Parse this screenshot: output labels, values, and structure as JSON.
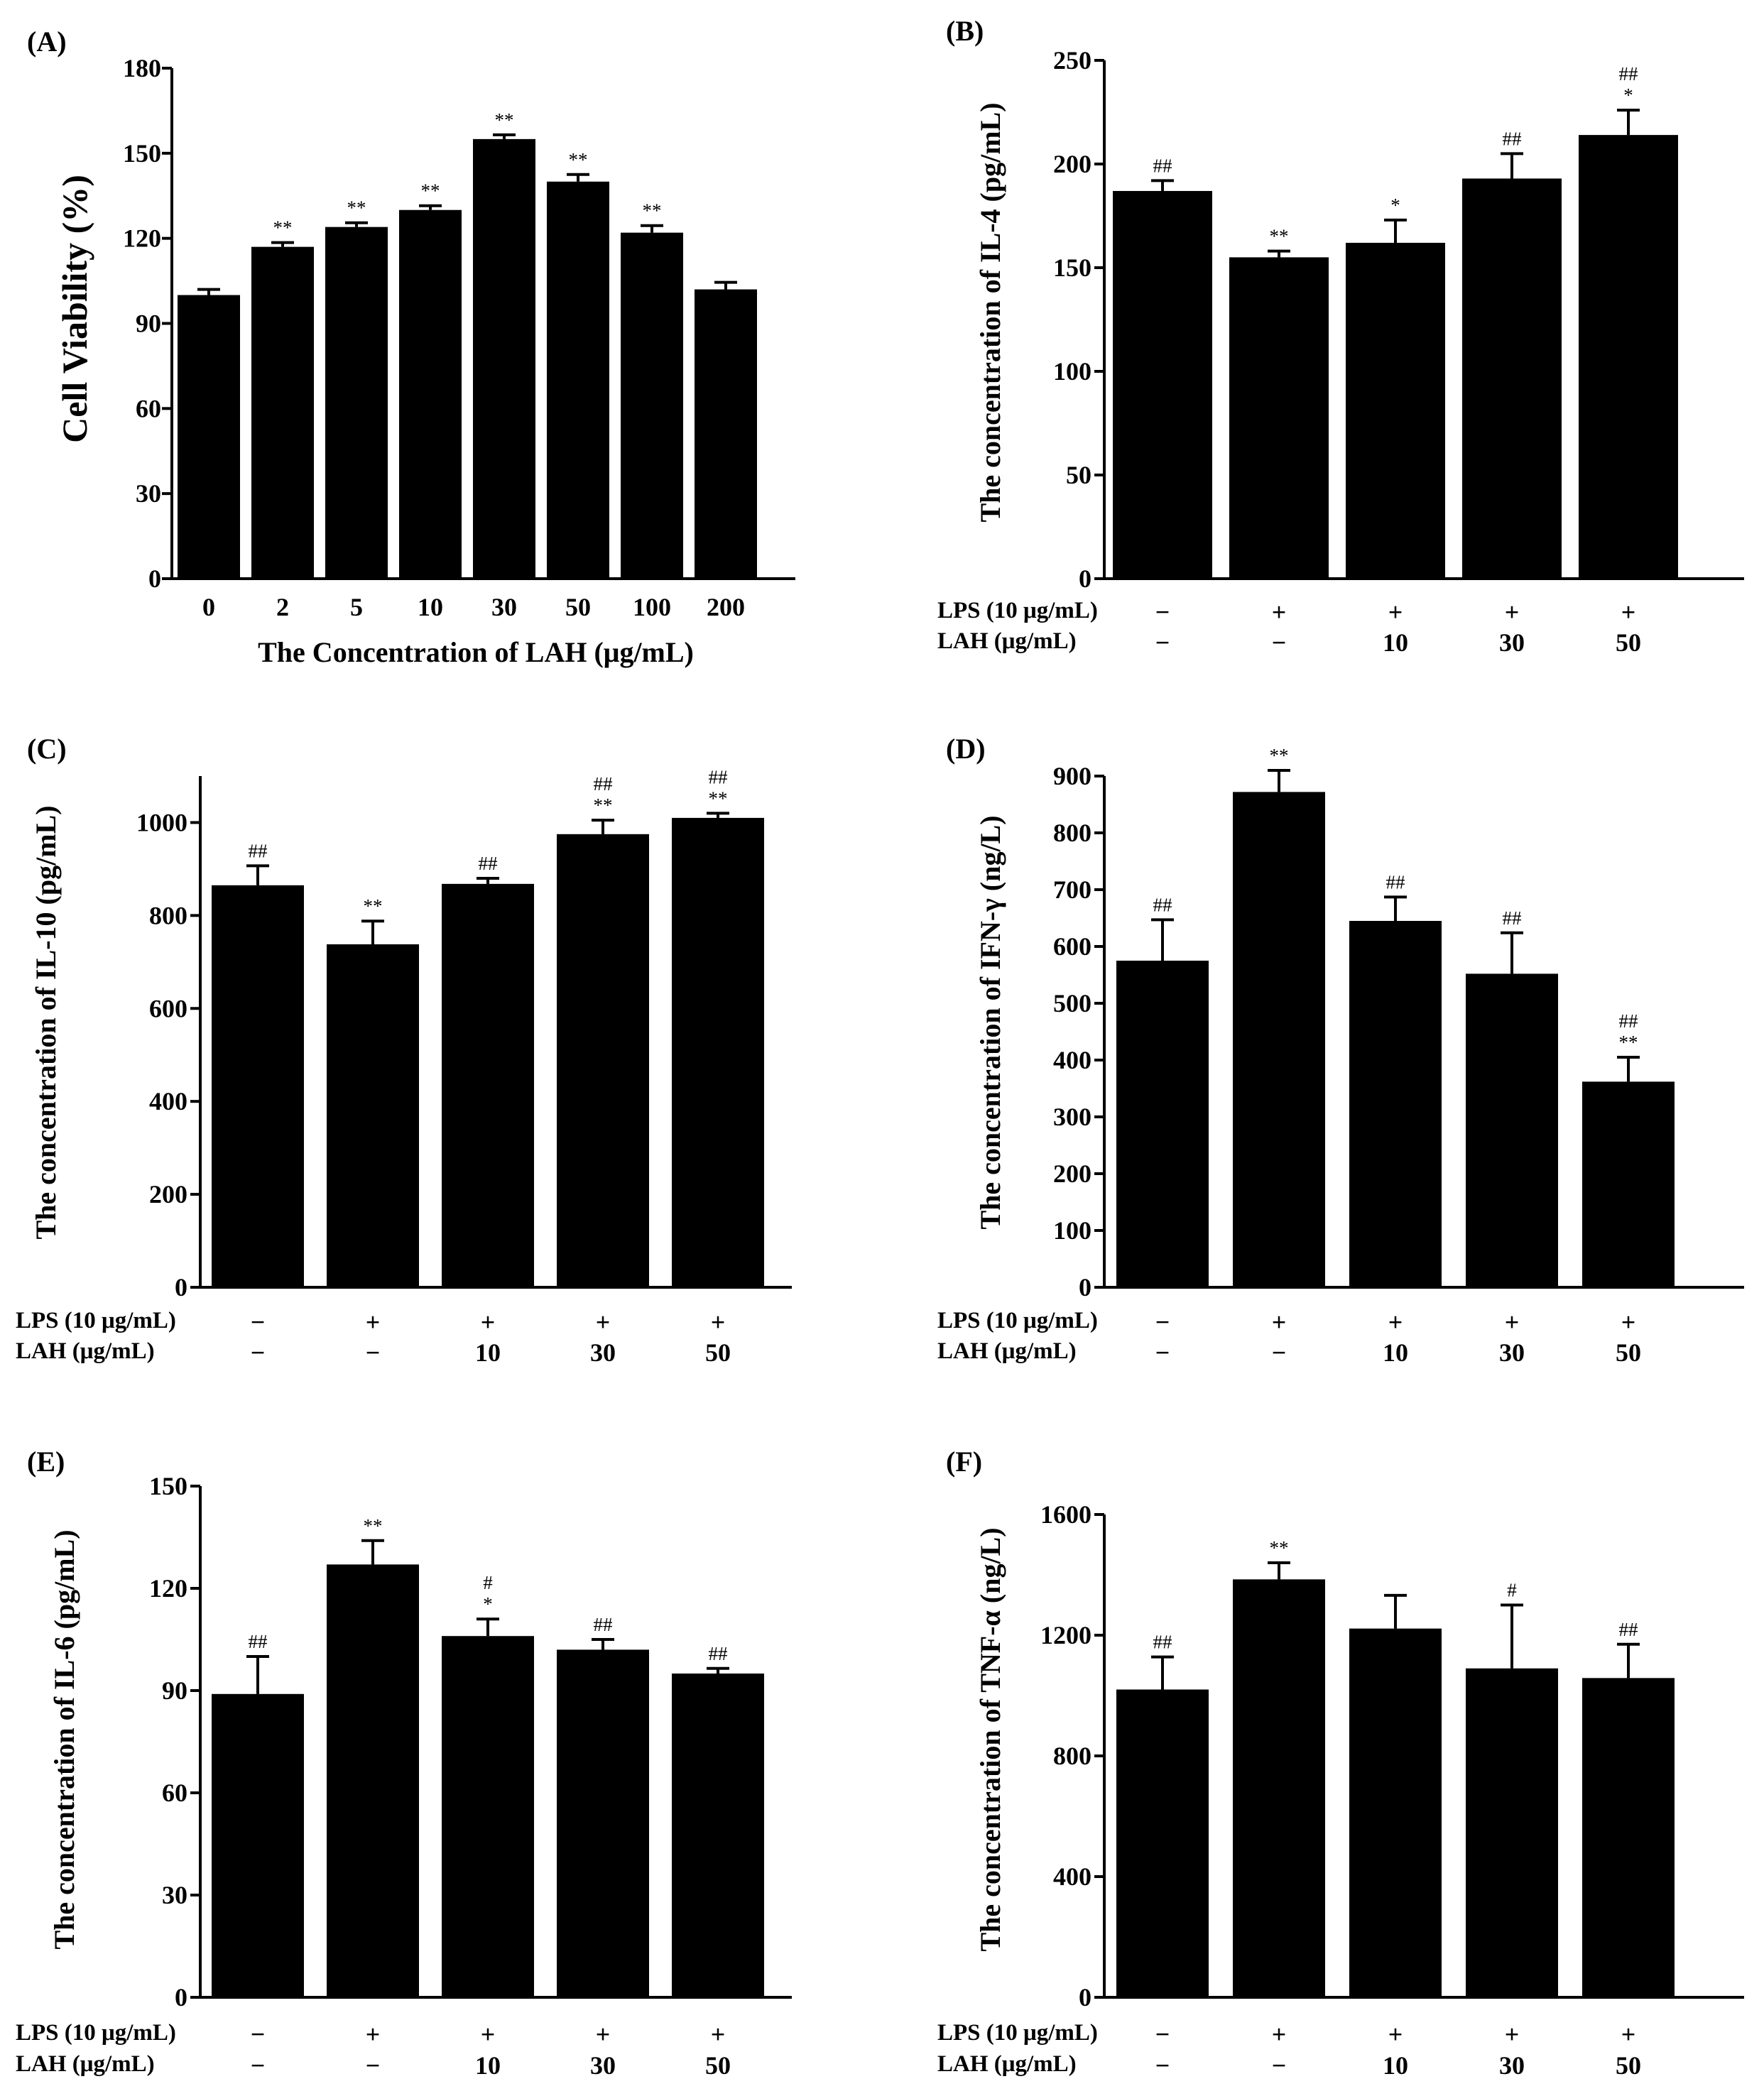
{
  "figure": {
    "colors": {
      "bar": "#000000",
      "axis": "#000000",
      "background": "#ffffff"
    }
  },
  "chart_data": [
    {
      "id": "A",
      "panel_label": "(A)",
      "type": "bar",
      "ylabel": "Cell Viability (%)",
      "xlabel": "The Concentration of LAH (μg/mL)",
      "ylim": [
        0,
        180
      ],
      "yticks": [
        "0",
        "30",
        "60",
        "90",
        "120",
        "150",
        "180"
      ],
      "categories": [
        "0",
        "2",
        "5",
        "10",
        "30",
        "50",
        "100",
        "200"
      ],
      "values": [
        100,
        117,
        124,
        130,
        155,
        140,
        122,
        102
      ],
      "errors": [
        2,
        1.5,
        1.5,
        1.5,
        1.5,
        2.5,
        2.5,
        2.5
      ],
      "annotations": [
        [],
        [
          "**"
        ],
        [
          "**"
        ],
        [
          "**"
        ],
        [
          "**"
        ],
        [
          "**"
        ],
        [
          "**"
        ],
        []
      ]
    },
    {
      "id": "B",
      "panel_label": "(B)",
      "type": "bar",
      "ylabel": "The concentration of IL-4 (pg/mL)",
      "ylim": [
        0,
        250
      ],
      "yticks": [
        "0",
        "50",
        "100",
        "150",
        "200",
        "250"
      ],
      "conditions": [
        {
          "label": "LPS (10 μg/mL)",
          "values": [
            "−",
            "+",
            "+",
            "+",
            "+"
          ]
        },
        {
          "label": "LAH (μg/mL)",
          "values": [
            "−",
            "−",
            "10",
            "30",
            "50"
          ]
        }
      ],
      "values": [
        187,
        155,
        162,
        193,
        214
      ],
      "errors": [
        5,
        3,
        11,
        12,
        12
      ],
      "annotations": [
        [
          "##"
        ],
        [
          "**"
        ],
        [
          "*"
        ],
        [
          "##"
        ],
        [
          "##",
          "*"
        ]
      ]
    },
    {
      "id": "C",
      "panel_label": "(C)",
      "type": "bar",
      "ylabel": "The concentration of IL-10 (pg/mL)",
      "ylim": [
        0,
        1100
      ],
      "yticks": [
        "0",
        "200",
        "400",
        "600",
        "800",
        "1000"
      ],
      "conditions": [
        {
          "label": "LPS (10 μg/mL)",
          "values": [
            "−",
            "+",
            "+",
            "+",
            "+"
          ]
        },
        {
          "label": "LAH (μg/mL)",
          "values": [
            "−",
            "−",
            "10",
            "30",
            "50"
          ]
        }
      ],
      "values": [
        865,
        738,
        868,
        975,
        1010
      ],
      "errors": [
        42,
        50,
        12,
        30,
        10
      ],
      "annotations": [
        [
          "##"
        ],
        [
          "**"
        ],
        [
          "##"
        ],
        [
          "##",
          "**"
        ],
        [
          "##",
          "**"
        ]
      ]
    },
    {
      "id": "D",
      "panel_label": "(D)",
      "type": "bar",
      "ylabel": "The concentration of IFN-γ (ng/L)",
      "ylim": [
        0,
        900
      ],
      "yticks": [
        "0",
        "100",
        "200",
        "300",
        "400",
        "500",
        "600",
        "700",
        "800",
        "900"
      ],
      "conditions": [
        {
          "label": "LPS (10 μg/mL)",
          "values": [
            "−",
            "+",
            "+",
            "+",
            "+"
          ]
        },
        {
          "label": "LAH (μg/mL)",
          "values": [
            "−",
            "−",
            "10",
            "30",
            "50"
          ]
        }
      ],
      "values": [
        575,
        872,
        645,
        552,
        362
      ],
      "errors": [
        72,
        38,
        42,
        72,
        43
      ],
      "annotations": [
        [
          "##"
        ],
        [
          "**"
        ],
        [
          "##"
        ],
        [
          "##"
        ],
        [
          "##",
          "**"
        ]
      ]
    },
    {
      "id": "E",
      "panel_label": "(E)",
      "type": "bar",
      "ylabel": "The concentration of IL-6 (pg/mL)",
      "ylim": [
        0,
        150
      ],
      "yticks": [
        "0",
        "30",
        "60",
        "90",
        "120",
        "150"
      ],
      "conditions": [
        {
          "label": "LPS (10 μg/mL)",
          "values": [
            "−",
            "+",
            "+",
            "+",
            "+"
          ]
        },
        {
          "label": "LAH (μg/mL)",
          "values": [
            "−",
            "−",
            "10",
            "30",
            "50"
          ]
        }
      ],
      "values": [
        89,
        127,
        106,
        102,
        95
      ],
      "errors": [
        11,
        7,
        5,
        3,
        1.5
      ],
      "annotations": [
        [
          "##"
        ],
        [
          "**"
        ],
        [
          "#",
          "*"
        ],
        [
          "##"
        ],
        [
          "##"
        ]
      ]
    },
    {
      "id": "F",
      "panel_label": "(F)",
      "type": "bar",
      "ylabel": "The concentration of TNF-α (ng/L)",
      "ylim": [
        0,
        1600
      ],
      "yticks": [
        "0",
        "400",
        "800",
        "1200",
        "1600"
      ],
      "conditions": [
        {
          "label": "LPS (10 μg/mL)",
          "values": [
            "−",
            "+",
            "+",
            "+",
            "+"
          ]
        },
        {
          "label": "LAH (μg/mL)",
          "values": [
            "−",
            "−",
            "10",
            "30",
            "50"
          ]
        }
      ],
      "values": [
        1020,
        1385,
        1222,
        1090,
        1058
      ],
      "errors": [
        108,
        55,
        110,
        210,
        112
      ],
      "annotations": [
        [
          "##"
        ],
        [
          "**"
        ],
        [],
        [
          "#"
        ],
        [
          "##"
        ]
      ]
    }
  ]
}
